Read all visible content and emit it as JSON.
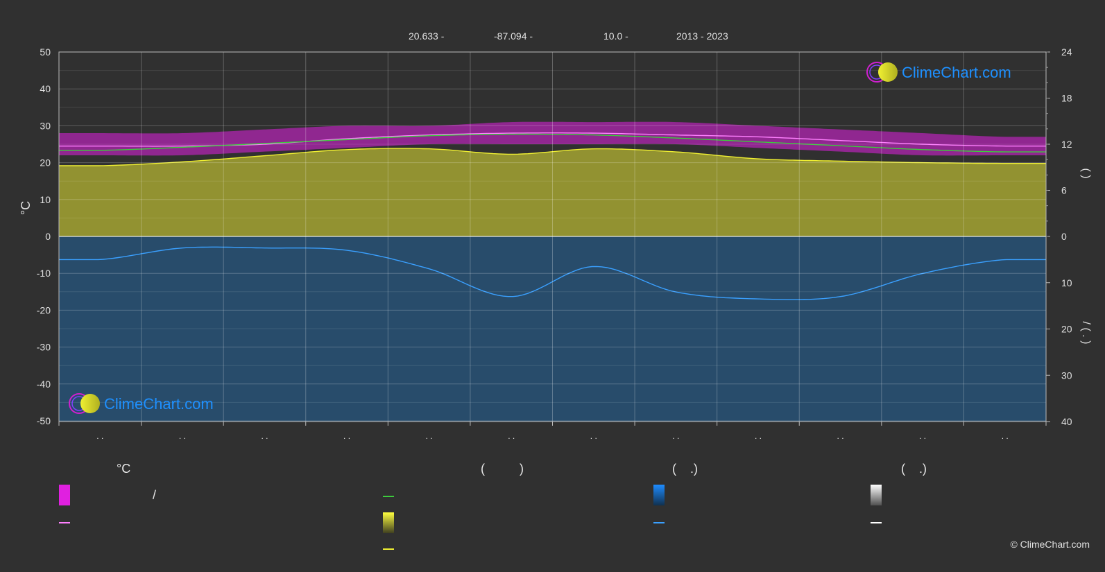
{
  "header": {
    "lat": "20.633 -",
    "lon": "-87.094 -",
    "elev": "10.0 -",
    "years": "2013 - 2023"
  },
  "logo_text": "ClimeChart.com",
  "copyright": "© ClimeChart.com",
  "colors": {
    "background": "#303030",
    "magenta": "#e020e0",
    "sunshine": "#c8c832",
    "precip": "#1e6eb4",
    "green": "#3ccc3c",
    "yellow": "#f0f032",
    "pink": "#ff80ff",
    "blue": "#3aa0ff",
    "logo": "#1e90ff"
  },
  "legend": {
    "col1_title": "°C",
    "col1_sep": "/",
    "col2_title": "(          )",
    "col3_title": "(    .)",
    "col4_title": "(    .)"
  },
  "chart_data": {
    "type": "area",
    "x_months": [
      1,
      2,
      3,
      4,
      5,
      6,
      7,
      8,
      9,
      10,
      11,
      12
    ],
    "x_tick_labels": [
      ". .",
      ". .",
      ". .",
      ". .",
      ". .",
      ". .",
      ". .",
      ". .",
      ". .",
      ". .",
      ". .",
      ". ."
    ],
    "y_left": {
      "label": "°C",
      "lim": [
        -50,
        50
      ],
      "ticks": [
        -50,
        -40,
        -30,
        -20,
        -10,
        0,
        10,
        20,
        30,
        40,
        50
      ]
    },
    "y_right_top": {
      "label": "(          )",
      "lim": [
        0,
        24
      ],
      "ticks": [
        0,
        6,
        12,
        18,
        24
      ]
    },
    "y_right_bottom": {
      "label": "/     (  .   )",
      "lim": [
        0,
        40
      ],
      "ticks": [
        10,
        20,
        30,
        40
      ]
    },
    "series": [
      {
        "key": "mean_max_temp",
        "color": "pink",
        "axis": "left",
        "values": [
          24.5,
          24.5,
          25.0,
          26.5,
          27.5,
          28.0,
          28.0,
          27.5,
          27.0,
          26.0,
          25.0,
          24.5
        ]
      },
      {
        "key": "mean_daylight",
        "color": "green",
        "axis": "right_top",
        "values": [
          11.2,
          11.6,
          12.1,
          12.6,
          13.1,
          13.3,
          13.2,
          12.8,
          12.3,
          11.8,
          11.3,
          11.0
        ]
      },
      {
        "key": "mean_sunshine",
        "color": "yellow",
        "axis": "right_top",
        "values": [
          9.2,
          9.7,
          10.5,
          11.3,
          11.4,
          10.7,
          11.4,
          11.0,
          10.1,
          9.8,
          9.6,
          9.5
        ]
      },
      {
        "key": "mean_precip",
        "color": "blue",
        "axis": "right_bottom",
        "values": [
          5.0,
          2.5,
          2.5,
          3.0,
          7.0,
          13.0,
          6.5,
          12.0,
          13.5,
          13.0,
          8.0,
          5.0
        ]
      }
    ],
    "bands": {
      "temp_range": {
        "color": "magenta",
        "min": [
          22,
          22,
          23,
          24,
          25,
          25,
          25,
          25,
          24,
          23,
          22,
          22
        ],
        "max": [
          28,
          28,
          29,
          30,
          30,
          31,
          31,
          31,
          30,
          29,
          28,
          27
        ]
      },
      "sunshine_area": {
        "color": "sunshine",
        "from_series": "mean_sunshine"
      },
      "precip_area": {
        "color": "precip",
        "to": 40
      }
    },
    "grid": true
  }
}
